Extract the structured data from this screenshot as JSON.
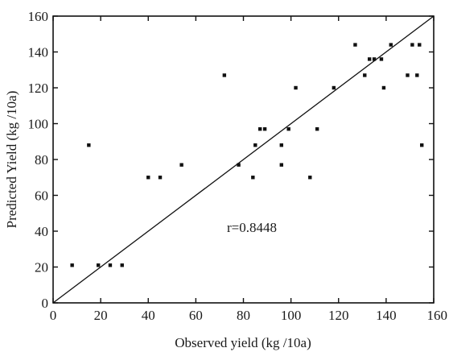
{
  "chart_data": {
    "type": "scatter",
    "title": "",
    "xlabel": "Observed yield (kg /10a)",
    "ylabel": "Predicted Yield (kg /10a)",
    "xlim": [
      0,
      160
    ],
    "ylim": [
      0,
      160
    ],
    "xticks": [
      0,
      20,
      40,
      60,
      80,
      100,
      120,
      140,
      160
    ],
    "yticks": [
      0,
      20,
      40,
      60,
      80,
      100,
      120,
      140,
      160
    ],
    "x_tick_labels": [
      "0",
      "20",
      "40",
      "60",
      "80",
      "100",
      "120",
      "140",
      "160"
    ],
    "y_tick_labels": [
      "0",
      "20",
      "40",
      "60",
      "80",
      "100",
      "120",
      "140",
      "160"
    ],
    "grid": false,
    "annotation": "r=0.8448",
    "reference_line": {
      "from": [
        0,
        0
      ],
      "to": [
        160,
        160
      ]
    },
    "points": [
      [
        8,
        21
      ],
      [
        15,
        88
      ],
      [
        19,
        21
      ],
      [
        24,
        21
      ],
      [
        29,
        21
      ],
      [
        40,
        70
      ],
      [
        45,
        70
      ],
      [
        54,
        77
      ],
      [
        72,
        127
      ],
      [
        78,
        77
      ],
      [
        84,
        70
      ],
      [
        85,
        88
      ],
      [
        87,
        97
      ],
      [
        89,
        97
      ],
      [
        96,
        88
      ],
      [
        96,
        77
      ],
      [
        99,
        97
      ],
      [
        102,
        120
      ],
      [
        108,
        70
      ],
      [
        111,
        97
      ],
      [
        118,
        120
      ],
      [
        127,
        144
      ],
      [
        131,
        127
      ],
      [
        133,
        136
      ],
      [
        135,
        136
      ],
      [
        138,
        136
      ],
      [
        139,
        120
      ],
      [
        142,
        144
      ],
      [
        149,
        127
      ],
      [
        151,
        144
      ],
      [
        153,
        127
      ],
      [
        154,
        144
      ],
      [
        155,
        88
      ]
    ]
  }
}
